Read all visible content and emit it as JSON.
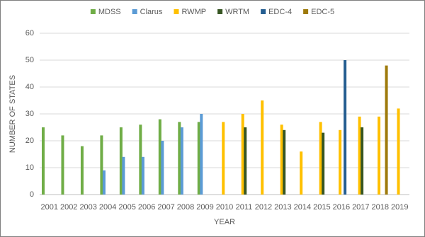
{
  "chart_data": {
    "type": "bar",
    "categories": [
      "2001",
      "2002",
      "2003",
      "2004",
      "2005",
      "2006",
      "2007",
      "2008",
      "2009",
      "2010",
      "2011",
      "2012",
      "2013",
      "2014",
      "2015",
      "2016",
      "2017",
      "2018",
      "2019"
    ],
    "series": [
      {
        "name": "MDSS",
        "color": "#70ad47",
        "values": [
          25,
          22,
          18,
          22,
          25,
          26,
          28,
          27,
          27,
          null,
          null,
          null,
          null,
          null,
          null,
          null,
          null,
          null,
          null
        ]
      },
      {
        "name": "Clarus",
        "color": "#5b9bd5",
        "values": [
          null,
          null,
          null,
          9,
          14,
          14,
          20,
          25,
          30,
          null,
          null,
          null,
          null,
          null,
          null,
          null,
          null,
          null,
          null
        ]
      },
      {
        "name": "RWMP",
        "color": "#ffc000",
        "values": [
          null,
          null,
          null,
          null,
          null,
          null,
          null,
          null,
          null,
          27,
          30,
          35,
          26,
          16,
          27,
          24,
          29,
          29,
          32
        ]
      },
      {
        "name": "WRTM",
        "color": "#375623",
        "values": [
          null,
          null,
          null,
          null,
          null,
          null,
          null,
          null,
          null,
          null,
          25,
          null,
          24,
          null,
          23,
          null,
          25,
          null,
          null
        ]
      },
      {
        "name": "EDC-4",
        "color": "#255e91",
        "values": [
          null,
          null,
          null,
          null,
          null,
          null,
          null,
          null,
          null,
          null,
          null,
          null,
          null,
          null,
          null,
          50,
          null,
          null,
          null
        ]
      },
      {
        "name": "EDC-5",
        "color": "#9e7a0b",
        "values": [
          null,
          null,
          null,
          null,
          null,
          null,
          null,
          null,
          null,
          null,
          null,
          null,
          null,
          null,
          null,
          null,
          null,
          48,
          null
        ]
      }
    ],
    "xlabel": "YEAR",
    "ylabel": "NUMBER OF STATES",
    "ylim": [
      0,
      60
    ],
    "yticks": [
      0,
      10,
      20,
      30,
      40,
      50,
      60
    ],
    "grid": true,
    "legend": "top"
  }
}
